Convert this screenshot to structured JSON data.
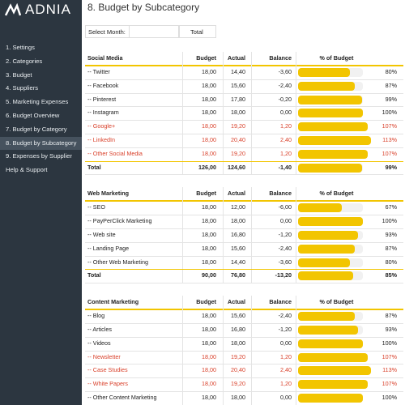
{
  "sidebar": {
    "logo": "ADNIA",
    "active": 7,
    "menu": [
      "1. Settings",
      "2. Categories",
      "3. Budget",
      "4. Suppliers",
      "5. Marketing Expenses",
      "6. Budget Overview",
      "7. Budget by Category",
      "8. Budget by Subcategory",
      "9. Expenses by Supplier",
      "Help & Support"
    ]
  },
  "header": {
    "title": "8. Budget by Subcategory",
    "select_label": "Select Month:",
    "select_value": "Total"
  },
  "sections": [
    {
      "title": "Social Media",
      "columns": [
        "Budget",
        "Actual",
        "Balance",
        "% of Budget"
      ],
      "rows": [
        {
          "name": "-- Twitter",
          "budget": "18,00",
          "actual": "14,40",
          "balance": "-3,60",
          "pct": {
            "value": 80,
            "label": "80%"
          }
        },
        {
          "name": "-- Facebook",
          "budget": "18,00",
          "actual": "15,60",
          "balance": "-2,40",
          "pct": {
            "value": 87,
            "label": "87%"
          }
        },
        {
          "name": "-- Pinterest",
          "budget": "18,00",
          "actual": "17,80",
          "balance": "-0,20",
          "pct": {
            "value": 99,
            "label": "99%"
          }
        },
        {
          "name": "-- Instagram",
          "budget": "18,00",
          "actual": "18,00",
          "balance": "0,00",
          "pct": {
            "value": 100,
            "label": "100%"
          }
        },
        {
          "name": "-- Google+",
          "budget": "18,00",
          "actual": "19,20",
          "balance": "1,20",
          "pct": {
            "value": 107,
            "label": "107%"
          }
        },
        {
          "name": "-- LinkedIn",
          "budget": "18,00",
          "actual": "20,40",
          "balance": "2,40",
          "pct": {
            "value": 113,
            "label": "113%"
          }
        },
        {
          "name": "-- Other Social Media",
          "budget": "18,00",
          "actual": "19,20",
          "balance": "1,20",
          "pct": {
            "value": 107,
            "label": "107%"
          }
        }
      ],
      "total": {
        "name": "Total",
        "budget": "126,00",
        "actual": "124,60",
        "balance": "-1,40",
        "pct": {
          "value": 99,
          "label": "99%"
        }
      }
    },
    {
      "title": "Web Marketing",
      "columns": [
        "Budget",
        "Actual",
        "Balance",
        "% of Budget"
      ],
      "rows": [
        {
          "name": "-- SEO",
          "budget": "18,00",
          "actual": "12,00",
          "balance": "-6,00",
          "pct": {
            "value": 67,
            "label": "67%"
          }
        },
        {
          "name": "-- PayPerClick Marketing",
          "budget": "18,00",
          "actual": "18,00",
          "balance": "0,00",
          "pct": {
            "value": 100,
            "label": "100%"
          }
        },
        {
          "name": "-- Web site",
          "budget": "18,00",
          "actual": "16,80",
          "balance": "-1,20",
          "pct": {
            "value": 93,
            "label": "93%"
          }
        },
        {
          "name": "-- Landing Page",
          "budget": "18,00",
          "actual": "15,60",
          "balance": "-2,40",
          "pct": {
            "value": 87,
            "label": "87%"
          }
        },
        {
          "name": "-- Other Web Marketing",
          "budget": "18,00",
          "actual": "14,40",
          "balance": "-3,60",
          "pct": {
            "value": 80,
            "label": "80%"
          }
        }
      ],
      "total": {
        "name": "Total",
        "budget": "90,00",
        "actual": "76,80",
        "balance": "-13,20",
        "pct": {
          "value": 85,
          "label": "85%"
        }
      }
    },
    {
      "title": "Content Marketing",
      "columns": [
        "Budget",
        "Actual",
        "Balance",
        "% of Budget"
      ],
      "rows": [
        {
          "name": "-- Blog",
          "budget": "18,00",
          "actual": "15,60",
          "balance": "-2,40",
          "pct": {
            "value": 87,
            "label": "87%"
          }
        },
        {
          "name": "-- Articles",
          "budget": "18,00",
          "actual": "16,80",
          "balance": "-1,20",
          "pct": {
            "value": 93,
            "label": "93%"
          }
        },
        {
          "name": "-- Videos",
          "budget": "18,00",
          "actual": "18,00",
          "balance": "0,00",
          "pct": {
            "value": 100,
            "label": "100%"
          }
        },
        {
          "name": "-- Newsletter",
          "budget": "18,00",
          "actual": "19,20",
          "balance": "1,20",
          "pct": {
            "value": 107,
            "label": "107%"
          }
        },
        {
          "name": "-- Case Studies",
          "budget": "18,00",
          "actual": "20,40",
          "balance": "2,40",
          "pct": {
            "value": 113,
            "label": "113%"
          }
        },
        {
          "name": "-- White Papers",
          "budget": "18,00",
          "actual": "19,20",
          "balance": "1,20",
          "pct": {
            "value": 107,
            "label": "107%"
          }
        },
        {
          "name": "-- Other Content Marketing",
          "budget": "18,00",
          "actual": "18,00",
          "balance": "0,00",
          "pct": {
            "value": 100,
            "label": "100%"
          }
        }
      ]
    }
  ]
}
